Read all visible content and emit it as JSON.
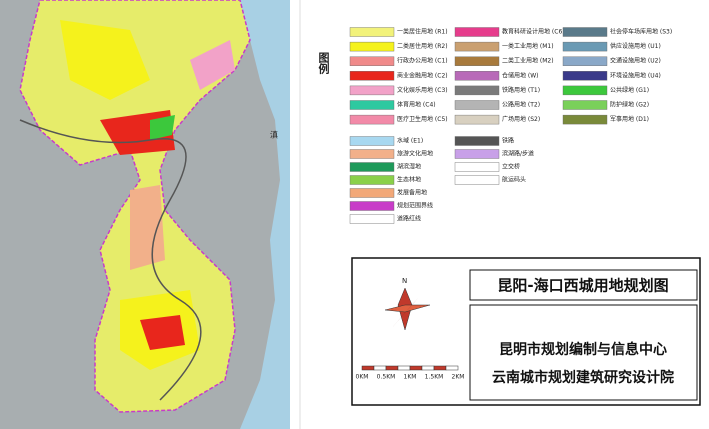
{
  "map": {
    "lake_label": "滇"
  },
  "legend": {
    "title": "图例",
    "land_use": [
      [
        {
          "label": "一类居住用地 (R1)",
          "color": "#f2f27a"
        },
        {
          "label": "二类居住用地 (R2)",
          "color": "#f5f21c"
        },
        {
          "label": "行政办公用地 (C1)",
          "color": "#f08a8a"
        },
        {
          "label": "商业金融用地 (C2)",
          "color": "#e8261c"
        },
        {
          "label": "文化娱乐用地 (C3)",
          "color": "#f2a2c8"
        },
        {
          "label": "体育用地 (C4)",
          "color": "#2ec9a0"
        },
        {
          "label": "医疗卫生用地 (C5)",
          "color": "#f28aa8"
        }
      ],
      [
        {
          "label": "教育科研设计用地 (C6)",
          "color": "#e63c8c"
        },
        {
          "label": "一类工业用地 (M1)",
          "color": "#caa070"
        },
        {
          "label": "二类工业用地 (M2)",
          "color": "#a87a3c"
        },
        {
          "label": "仓储用地 (W)",
          "color": "#b86ab8"
        },
        {
          "label": "铁路用地 (T1)",
          "color": "#7a7a7a"
        },
        {
          "label": "公路用地 (T2)",
          "color": "#b4b4b4"
        },
        {
          "label": "广场用地 (S2)",
          "color": "#d8d0c0"
        }
      ],
      [
        {
          "label": "社会停车场库用地 (S3)",
          "color": "#5a7a8a"
        },
        {
          "label": "供应设施用地 (U1)",
          "color": "#6a9ab4"
        },
        {
          "label": "交通设施用地 (U2)",
          "color": "#8aa8c8"
        },
        {
          "label": "环境设施用地 (U4)",
          "color": "#3a3a8a"
        },
        {
          "label": "公共绿地 (G1)",
          "color": "#3cc83c"
        },
        {
          "label": "防护绿地 (G2)",
          "color": "#7ad05a"
        },
        {
          "label": "军事用地 (D1)",
          "color": "#7a8a3a"
        }
      ]
    ],
    "other": [
      [
        {
          "label": "水域 (E1)",
          "color": "#a8d8f0"
        },
        {
          "label": "旅游文化用地",
          "color": "#f2b08a"
        },
        {
          "label": "湖滨湿地",
          "color": "#1e9a5a"
        },
        {
          "label": "生态林地",
          "color": "#8ad04a"
        },
        {
          "label": "发展备用地",
          "color": "#f2a878"
        },
        {
          "label": "规划范围界线",
          "color": "#c83cc8"
        },
        {
          "label": "道路红线",
          "color": "#ffffff"
        }
      ],
      [
        {
          "label": "铁路",
          "color": "#555555"
        },
        {
          "label": "滨湖路/步道",
          "color": "#c8a0e8"
        },
        {
          "label": "立交桥",
          "color": "#ffffff"
        },
        {
          "label": "航运码头",
          "color": "#ffffff"
        }
      ]
    ]
  },
  "title_box": {
    "title": "昆阳-海口西城用地规划图",
    "org1": "昆明市规划编制与信息中心",
    "org2": "云南城市规划建筑研究设计院",
    "north": "N",
    "scale": [
      "0KM",
      "0.5KM",
      "1KM",
      "1.5KM",
      "2KM"
    ]
  }
}
